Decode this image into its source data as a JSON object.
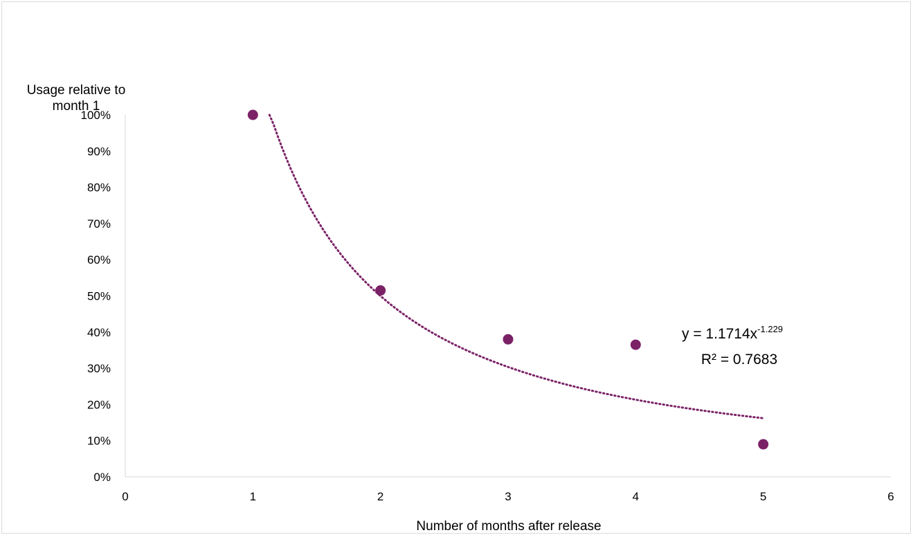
{
  "chart_data": {
    "type": "scatter",
    "x": [
      1,
      2,
      3,
      4,
      5
    ],
    "y": [
      1.0,
      0.515,
      0.38,
      0.365,
      0.09
    ],
    "xlim": [
      0,
      6
    ],
    "ylim": [
      0,
      1
    ],
    "x_ticks": [
      "0",
      "1",
      "2",
      "3",
      "4",
      "5",
      "6"
    ],
    "y_ticks": [
      "0%",
      "10%",
      "20%",
      "30%",
      "40%",
      "50%",
      "60%",
      "70%",
      "80%",
      "90%",
      "100%"
    ],
    "xlabel": "Number of months after release",
    "ylabel_line1": "Usage relative to",
    "ylabel_line2": "month 1",
    "grid": false,
    "marker_color": "#7b2267",
    "trendline": {
      "type": "power",
      "a": 1.1714,
      "b": -1.229,
      "x_range": [
        1.13,
        5
      ],
      "equation_prefix": "y = 1.1714x",
      "equation_exponent": "-1.229",
      "r_squared": "R² = 0.7683",
      "style": "dotted",
      "color": "#7b2267"
    }
  }
}
